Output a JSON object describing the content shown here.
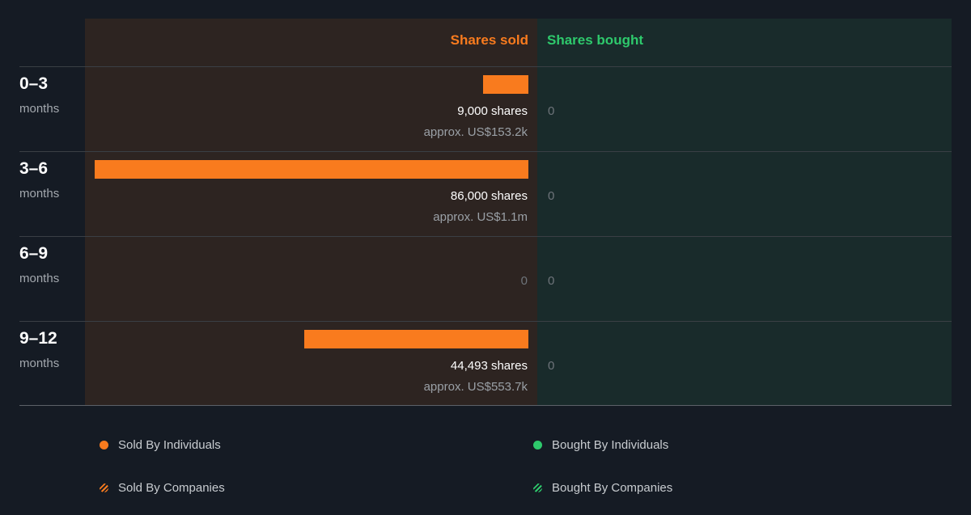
{
  "header": {
    "sold": "Shares sold",
    "bought": "Shares bought"
  },
  "colors": {
    "sold": "#f97b1e",
    "bought": "#2ec96c"
  },
  "chart_data": {
    "type": "bar",
    "categories": [
      "0–3 months",
      "3–6 months",
      "6–9 months",
      "9–12 months"
    ],
    "series": [
      {
        "name": "Shares sold",
        "values": [
          9000,
          86000,
          0,
          44493
        ]
      },
      {
        "name": "Shares bought",
        "values": [
          0,
          0,
          0,
          0
        ]
      }
    ],
    "periods": [
      {
        "num": "0–3",
        "unit": "months",
        "sold_shares": "9,000 shares",
        "sold_value": "approx. US$153.2k",
        "sold_zero": "",
        "bought": "0"
      },
      {
        "num": "3–6",
        "unit": "months",
        "sold_shares": "86,000 shares",
        "sold_value": "approx. US$1.1m",
        "sold_zero": "",
        "bought": "0"
      },
      {
        "num": "6–9",
        "unit": "months",
        "sold_shares": "",
        "sold_value": "",
        "sold_zero": "0",
        "bought": "0"
      },
      {
        "num": "9–12",
        "unit": "months",
        "sold_shares": "44,493 shares",
        "sold_value": "approx. US$553.7k",
        "sold_zero": "",
        "bought": "0"
      }
    ]
  },
  "legend": [
    {
      "label": "Sold By Individuals",
      "marker": "dot",
      "color": "#f97b1e"
    },
    {
      "label": "Bought By Individuals",
      "marker": "dot",
      "color": "#2ec96c"
    },
    {
      "label": "Sold By Companies",
      "marker": "striped-dot",
      "color": "#f97b1e"
    },
    {
      "label": "Bought By Companies",
      "marker": "striped-dot",
      "color": "#2ec96c"
    }
  ]
}
